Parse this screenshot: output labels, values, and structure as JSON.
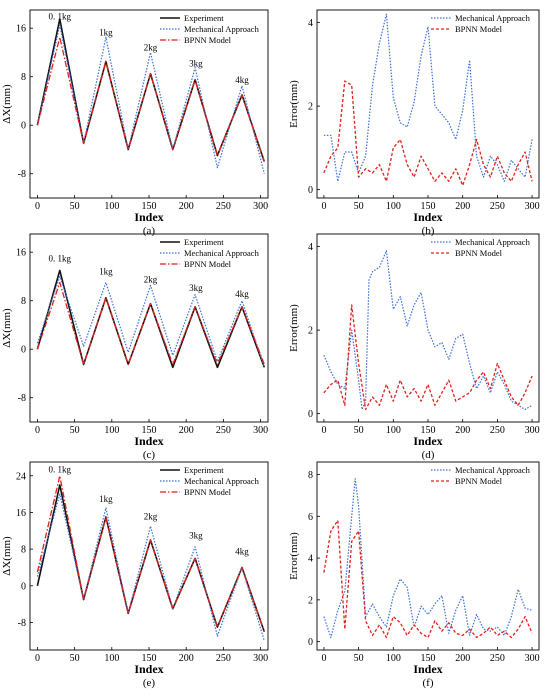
{
  "colors": {
    "experiment": "#111111",
    "mechanical": "#3a6fd8",
    "bpnn": "#e0201b",
    "mech_error": "#2f55d4"
  },
  "chart_data": [
    {
      "id": "a",
      "type": "line",
      "panel_label": "(a)",
      "xlabel": "Index",
      "ylabel": "ΔX(mm)",
      "xlim": [
        -10,
        310
      ],
      "ylim": [
        -12,
        19
      ],
      "xticks": [
        0,
        50,
        100,
        150,
        200,
        250,
        300
      ],
      "yticks": [
        -8,
        0,
        8,
        16
      ],
      "legend": [
        "Experiment",
        "Mechanical Approach",
        "BPNN Model"
      ],
      "legend_position": "top-right",
      "annotations": [
        {
          "text": "0. 1kg",
          "x": 30,
          "y": 17.4
        },
        {
          "text": "1kg",
          "x": 92,
          "y": 14.8
        },
        {
          "text": "2kg",
          "x": 152,
          "y": 12.3
        },
        {
          "text": "3kg",
          "x": 213,
          "y": 9.7
        },
        {
          "text": "4kg",
          "x": 275,
          "y": 7.0
        }
      ],
      "series": [
        {
          "name": "Experiment",
          "style": "solid",
          "x": [
            0,
            30,
            62,
            92,
            122,
            152,
            182,
            212,
            242,
            275,
            305
          ],
          "y": [
            0,
            17.5,
            -3,
            10.5,
            -4,
            8.5,
            -4,
            7.5,
            -5,
            5,
            -6
          ]
        },
        {
          "name": "Mechanical Approach",
          "style": "dotted",
          "x": [
            0,
            30,
            62,
            92,
            122,
            152,
            182,
            212,
            242,
            275,
            305
          ],
          "y": [
            0,
            16.5,
            -3,
            14.5,
            -4,
            12,
            -4,
            9.5,
            -7,
            6.5,
            -8
          ]
        },
        {
          "name": "BPNN Model",
          "style": "dashdot",
          "x": [
            0,
            30,
            62,
            92,
            122,
            152,
            182,
            212,
            242,
            275,
            305
          ],
          "y": [
            0,
            14.5,
            -3,
            10.5,
            -4,
            8.5,
            -4,
            7.5,
            -5,
            5,
            -6
          ]
        }
      ]
    },
    {
      "id": "b",
      "type": "line",
      "panel_label": "(b)",
      "xlabel": "Index",
      "ylabel": "Error(mm)",
      "xlim": [
        -10,
        310
      ],
      "ylim": [
        -0.2,
        4.3
      ],
      "xticks": [
        0,
        50,
        100,
        150,
        200,
        250,
        300
      ],
      "yticks": [
        0,
        2,
        4
      ],
      "legend": [
        "Mechanical Approach",
        "BPNN Model"
      ],
      "legend_position": "top-right",
      "series": [
        {
          "name": "Mechanical Approach",
          "style": "dotted",
          "x": [
            0,
            10,
            20,
            30,
            40,
            50,
            60,
            70,
            80,
            90,
            100,
            110,
            120,
            130,
            140,
            150,
            160,
            170,
            180,
            190,
            200,
            210,
            220,
            230,
            240,
            250,
            260,
            270,
            280,
            290,
            300
          ],
          "y": [
            1.3,
            1.3,
            0.2,
            0.9,
            0.9,
            0.4,
            0.8,
            2.5,
            3.5,
            4.2,
            2.2,
            1.6,
            1.5,
            2.1,
            3.2,
            3.9,
            2.0,
            1.8,
            1.6,
            1.2,
            1.9,
            3.1,
            0.8,
            0.3,
            0.8,
            0.6,
            0.2,
            0.7,
            0.5,
            0.3,
            1.2
          ]
        },
        {
          "name": "BPNN Model",
          "style": "dashed",
          "x": [
            0,
            10,
            20,
            30,
            40,
            50,
            60,
            70,
            80,
            90,
            100,
            110,
            120,
            130,
            140,
            150,
            160,
            170,
            180,
            190,
            200,
            210,
            220,
            230,
            240,
            250,
            260,
            270,
            280,
            290,
            300
          ],
          "y": [
            0.4,
            0.8,
            1.0,
            2.6,
            2.5,
            0.3,
            0.5,
            0.4,
            0.6,
            0.2,
            1.0,
            1.2,
            0.6,
            0.3,
            0.8,
            0.5,
            0.2,
            0.4,
            0.2,
            0.5,
            0.1,
            0.6,
            1.2,
            0.6,
            0.3,
            0.8,
            0.4,
            0.2,
            0.6,
            0.9,
            0.2
          ]
        }
      ]
    },
    {
      "id": "c",
      "type": "line",
      "panel_label": "(c)",
      "xlabel": "Index",
      "ylabel": "ΔX(mm)",
      "xlim": [
        -10,
        310
      ],
      "ylim": [
        -12,
        19
      ],
      "xticks": [
        0,
        50,
        100,
        150,
        200,
        250,
        300
      ],
      "yticks": [
        -8,
        0,
        8,
        16
      ],
      "legend": [
        "Experiment",
        "Mechanical Approach",
        "BPNN Model"
      ],
      "legend_position": "top-right",
      "annotations": [
        {
          "text": "0. 1kg",
          "x": 30,
          "y": 14.5
        },
        {
          "text": "1kg",
          "x": 92,
          "y": 12.3
        },
        {
          "text": "2kg",
          "x": 152,
          "y": 11.0
        },
        {
          "text": "3kg",
          "x": 213,
          "y": 9.6
        },
        {
          "text": "4kg",
          "x": 275,
          "y": 8.6
        }
      ],
      "series": [
        {
          "name": "Experiment",
          "style": "solid",
          "x": [
            0,
            30,
            62,
            92,
            122,
            152,
            182,
            212,
            242,
            275,
            305
          ],
          "y": [
            0,
            13,
            -2.5,
            8.5,
            -2.5,
            7.5,
            -3,
            7,
            -3,
            7,
            -3
          ]
        },
        {
          "name": "Mechanical Approach",
          "style": "dotted",
          "x": [
            0,
            30,
            62,
            92,
            122,
            152,
            182,
            212,
            242,
            275,
            305
          ],
          "y": [
            1,
            12,
            0.5,
            11,
            -0.5,
            10.5,
            -1,
            9,
            -2,
            8,
            -3
          ]
        },
        {
          "name": "BPNN Model",
          "style": "dashdot",
          "x": [
            0,
            30,
            62,
            92,
            122,
            152,
            182,
            212,
            242,
            275,
            305
          ],
          "y": [
            0,
            11,
            -2.5,
            8.5,
            -2.5,
            7.5,
            -2.5,
            7,
            -2.5,
            7,
            -2.5
          ]
        }
      ]
    },
    {
      "id": "d",
      "type": "line",
      "panel_label": "(d)",
      "xlabel": "Index",
      "ylabel": "Error(mm)",
      "xlim": [
        -10,
        310
      ],
      "ylim": [
        -0.2,
        4.3
      ],
      "xticks": [
        0,
        50,
        100,
        150,
        200,
        250,
        300
      ],
      "yticks": [
        0,
        2,
        4
      ],
      "legend": [
        "Mechanical Approach",
        "BPNN Model"
      ],
      "legend_position": "top-right",
      "series": [
        {
          "name": "Mechanical Approach",
          "style": "dotted",
          "x": [
            0,
            10,
            20,
            30,
            40,
            50,
            55,
            60,
            65,
            70,
            80,
            90,
            95,
            100,
            110,
            120,
            130,
            140,
            150,
            160,
            170,
            180,
            190,
            200,
            210,
            220,
            230,
            240,
            250,
            260,
            270,
            280,
            290,
            300
          ],
          "y": [
            1.4,
            1.0,
            0.7,
            0.6,
            2.0,
            0.8,
            0.1,
            0.3,
            3.2,
            3.4,
            3.5,
            3.9,
            3.2,
            2.5,
            2.8,
            2.1,
            2.6,
            2.9,
            2.0,
            1.6,
            1.7,
            1.3,
            1.8,
            1.9,
            1.2,
            0.6,
            0.9,
            0.5,
            1.0,
            0.7,
            0.3,
            0.2,
            0.1,
            0.2
          ]
        },
        {
          "name": "BPNN Model",
          "style": "dashed",
          "x": [
            0,
            10,
            20,
            30,
            40,
            50,
            60,
            70,
            80,
            90,
            100,
            110,
            120,
            130,
            140,
            150,
            160,
            170,
            180,
            190,
            200,
            210,
            220,
            230,
            240,
            250,
            260,
            270,
            280,
            290,
            300
          ],
          "y": [
            0.5,
            0.7,
            0.8,
            0.2,
            2.6,
            1.2,
            0.1,
            0.4,
            0.2,
            0.7,
            0.3,
            0.8,
            0.4,
            0.6,
            0.3,
            0.7,
            0.2,
            0.5,
            0.8,
            0.3,
            0.4,
            0.5,
            0.8,
            1.0,
            0.6,
            1.2,
            0.8,
            0.4,
            0.2,
            0.5,
            0.9
          ]
        }
      ]
    },
    {
      "id": "e",
      "type": "line",
      "panel_label": "(e)",
      "xlabel": "Index",
      "ylabel": "ΔX(mm)",
      "xlim": [
        -10,
        310
      ],
      "ylim": [
        -14,
        27
      ],
      "xticks": [
        0,
        50,
        100,
        150,
        200,
        250,
        300
      ],
      "yticks": [
        -8,
        0,
        8,
        16,
        24
      ],
      "legend": [
        "Experiment",
        "Mechanical Approach",
        "BPNN Model"
      ],
      "legend_position": "top-right",
      "annotations": [
        {
          "text": "0. 1kg",
          "x": 30,
          "y": 24.7
        },
        {
          "text": "1kg",
          "x": 92,
          "y": 18.3
        },
        {
          "text": "2kg",
          "x": 152,
          "y": 14.5
        },
        {
          "text": "3kg",
          "x": 213,
          "y": 10.3
        },
        {
          "text": "4kg",
          "x": 275,
          "y": 6.8
        }
      ],
      "series": [
        {
          "name": "Experiment",
          "style": "solid",
          "x": [
            0,
            30,
            62,
            92,
            122,
            152,
            182,
            212,
            242,
            275,
            305
          ],
          "y": [
            0,
            22,
            -3,
            15,
            -6,
            10,
            -5,
            6,
            -9,
            4,
            -10
          ]
        },
        {
          "name": "Mechanical Approach",
          "style": "dotted",
          "x": [
            0,
            30,
            62,
            92,
            122,
            152,
            182,
            212,
            242,
            275,
            305
          ],
          "y": [
            2,
            20,
            -3,
            17,
            -6,
            13,
            -5,
            8.5,
            -11,
            4,
            -12
          ]
        },
        {
          "name": "BPNN Model",
          "style": "dashdot",
          "x": [
            0,
            30,
            62,
            92,
            122,
            152,
            182,
            212,
            242,
            275,
            305
          ],
          "y": [
            3,
            24,
            -3,
            15,
            -6,
            10,
            -5,
            6,
            -9,
            4,
            -10
          ]
        }
      ]
    },
    {
      "id": "f",
      "type": "line",
      "panel_label": "(f)",
      "xlabel": "Index",
      "ylabel": "Error(mm)",
      "xlim": [
        -10,
        310
      ],
      "ylim": [
        -0.4,
        8.6
      ],
      "xticks": [
        0,
        50,
        100,
        150,
        200,
        250,
        300
      ],
      "yticks": [
        0,
        2,
        4,
        6,
        8
      ],
      "legend": [
        "Mechanical Approach",
        "BPNN Model"
      ],
      "legend_position": "top-right",
      "series": [
        {
          "name": "Mechanical Approach",
          "style": "dotted",
          "x": [
            0,
            10,
            20,
            30,
            40,
            45,
            50,
            60,
            70,
            80,
            90,
            100,
            110,
            120,
            130,
            140,
            150,
            160,
            170,
            180,
            190,
            200,
            210,
            220,
            230,
            240,
            250,
            260,
            270,
            280,
            290,
            300
          ],
          "y": [
            1.2,
            0.2,
            1.5,
            2.4,
            6.0,
            7.8,
            6.5,
            1.2,
            1.8,
            1.2,
            0.7,
            2.2,
            3.0,
            2.6,
            0.7,
            1.7,
            1.3,
            1.8,
            2.2,
            0.4,
            1.5,
            2.2,
            0.3,
            1.3,
            0.6,
            0.5,
            0.7,
            0.3,
            1.2,
            2.5,
            1.6,
            1.5
          ]
        },
        {
          "name": "BPNN Model",
          "style": "dashed",
          "x": [
            0,
            10,
            20,
            30,
            40,
            50,
            60,
            70,
            80,
            90,
            100,
            110,
            120,
            130,
            140,
            150,
            160,
            170,
            180,
            190,
            200,
            210,
            220,
            230,
            240,
            250,
            260,
            270,
            280,
            290,
            300
          ],
          "y": [
            3.3,
            5.3,
            5.8,
            0.6,
            4.8,
            5.3,
            1.0,
            0.3,
            0.8,
            0.2,
            1.2,
            0.9,
            0.3,
            0.8,
            0.4,
            0.2,
            1.0,
            0.5,
            0.9,
            0.4,
            0.3,
            0.6,
            0.2,
            0.4,
            0.7,
            0.3,
            0.5,
            0.2,
            0.6,
            1.2,
            0.4
          ]
        }
      ]
    }
  ]
}
